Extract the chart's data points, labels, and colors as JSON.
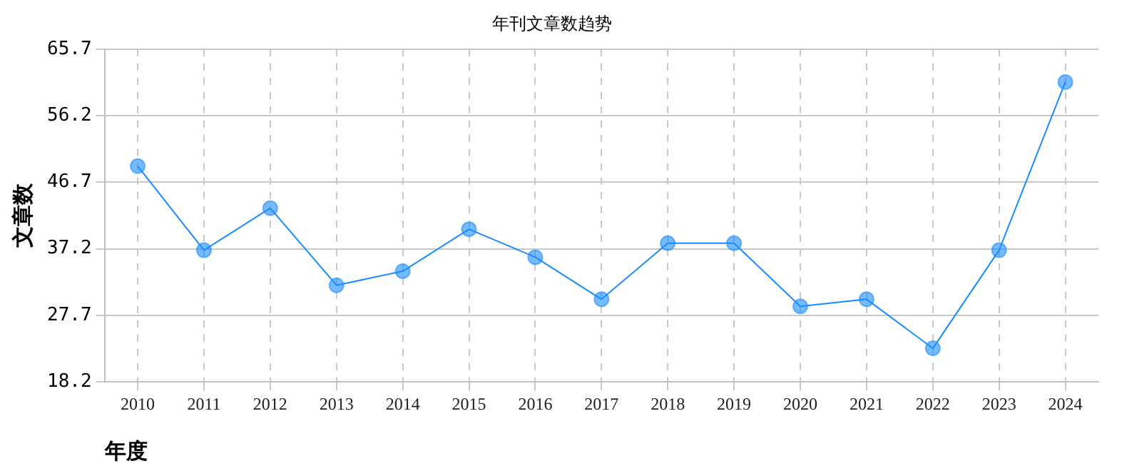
{
  "chart_data": {
    "type": "line",
    "title": "年刊文章数趋势",
    "xlabel": "年度",
    "ylabel": "文章数",
    "categories": [
      "2010",
      "2011",
      "2012",
      "2013",
      "2014",
      "2015",
      "2016",
      "2017",
      "2018",
      "2019",
      "2020",
      "2021",
      "2022",
      "2023",
      "2024"
    ],
    "series": [
      {
        "color": "#1a8cff",
        "values": [
          49,
          37,
          43,
          32,
          34,
          40,
          36,
          30,
          38,
          38,
          29,
          30,
          23,
          37,
          61
        ]
      }
    ],
    "ylim": [
      18.2,
      65.7
    ],
    "yticks": [
      18.2,
      27.7,
      37.2,
      46.7,
      56.2,
      65.7
    ],
    "grid": true,
    "legend": false,
    "marker": "circle",
    "line_style": "solid"
  }
}
